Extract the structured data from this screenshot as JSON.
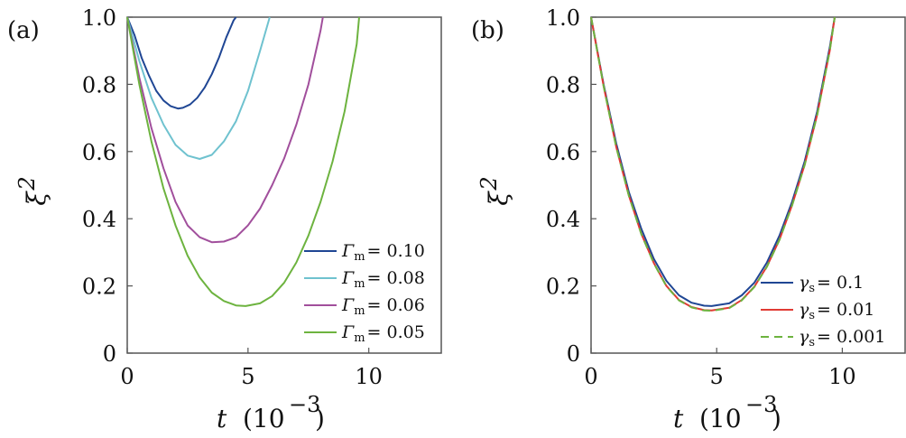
{
  "chart_data": [
    {
      "panel_label": "(a)",
      "type": "line",
      "xlabel": "t",
      "xlabel_unit": "(10",
      "xlabel_exp": "−3",
      "xlabel_close": ")",
      "ylabel": "ξ",
      "ylabel_exp": "2",
      "xlim": [
        0,
        13
      ],
      "ylim": [
        0,
        1.0
      ],
      "xticks": [
        0,
        5,
        10
      ],
      "yticks": [
        0,
        0.2,
        0.4,
        0.6,
        0.8,
        1.0
      ],
      "xtick_labels": [
        "0",
        "5",
        "10"
      ],
      "ytick_labels": [
        "0",
        "0.2",
        "0.4",
        "0.6",
        "0.8",
        "1.0"
      ],
      "legend_position": "bottom-right",
      "series": [
        {
          "name": "Γm = 0.10",
          "legend_sym": "Γ",
          "legend_sub": "m",
          "legend_val": "= 0.10",
          "color": "#1f4694",
          "dash": "none",
          "x": [
            0,
            0.3,
            0.6,
            0.9,
            1.2,
            1.5,
            1.8,
            2.1,
            2.3,
            2.6,
            2.9,
            3.2,
            3.5,
            3.8,
            4.1,
            4.4,
            4.5
          ],
          "y": [
            1.0,
            0.947,
            0.878,
            0.826,
            0.781,
            0.752,
            0.735,
            0.728,
            0.73,
            0.74,
            0.76,
            0.79,
            0.83,
            0.88,
            0.94,
            0.99,
            1.0
          ]
        },
        {
          "name": "Γm = 0.08",
          "legend_sym": "Γ",
          "legend_sub": "m",
          "legend_val": "= 0.08",
          "color": "#6fc2cf",
          "dash": "none",
          "x": [
            0,
            0.5,
            1.0,
            1.5,
            2.0,
            2.5,
            3.0,
            3.5,
            4.0,
            4.5,
            5.0,
            5.5,
            5.9
          ],
          "y": [
            1.0,
            0.87,
            0.76,
            0.68,
            0.62,
            0.588,
            0.578,
            0.59,
            0.63,
            0.69,
            0.78,
            0.9,
            1.0
          ]
        },
        {
          "name": "Γm = 0.06",
          "legend_sym": "Γ",
          "legend_sub": "m",
          "legend_val": "= 0.06",
          "color": "#a14f9c",
          "dash": "none",
          "x": [
            0,
            0.5,
            1.0,
            1.5,
            2.0,
            2.5,
            3.0,
            3.5,
            4.0,
            4.5,
            5.0,
            5.5,
            6.0,
            6.5,
            7.0,
            7.5,
            8.0,
            8.1
          ],
          "y": [
            1.0,
            0.82,
            0.67,
            0.55,
            0.45,
            0.38,
            0.345,
            0.33,
            0.332,
            0.345,
            0.38,
            0.43,
            0.5,
            0.58,
            0.68,
            0.8,
            0.96,
            1.0
          ]
        },
        {
          "name": "Γm = 0.05",
          "legend_sym": "Γ",
          "legend_sub": "m",
          "legend_val": "= 0.05",
          "color": "#6db33f",
          "dash": "none",
          "x": [
            0,
            0.5,
            1.0,
            1.5,
            2.0,
            2.5,
            3.0,
            3.5,
            4.0,
            4.5,
            4.9,
            5.5,
            6.0,
            6.5,
            7.0,
            7.5,
            8.0,
            8.5,
            9.0,
            9.5,
            9.6
          ],
          "y": [
            1.0,
            0.8,
            0.63,
            0.49,
            0.38,
            0.29,
            0.225,
            0.18,
            0.155,
            0.142,
            0.14,
            0.148,
            0.17,
            0.21,
            0.27,
            0.35,
            0.45,
            0.57,
            0.72,
            0.92,
            1.0
          ]
        }
      ]
    },
    {
      "panel_label": "(b)",
      "type": "line",
      "xlabel": "t",
      "xlabel_unit": "(10",
      "xlabel_exp": "−3",
      "xlabel_close": ")",
      "ylabel": "ξ",
      "ylabel_exp": "2",
      "xlim": [
        0,
        12.5
      ],
      "ylim": [
        0,
        1.0
      ],
      "xticks": [
        0,
        5,
        10
      ],
      "yticks": [
        0,
        0.2,
        0.4,
        0.6,
        0.8,
        1.0
      ],
      "xtick_labels": [
        "0",
        "5",
        "10"
      ],
      "ytick_labels": [
        "0",
        "0.2",
        "0.4",
        "0.6",
        "0.8",
        "1.0"
      ],
      "legend_position": "bottom-right",
      "series": [
        {
          "name": "γs = 0.1",
          "legend_sym": "γ",
          "legend_sub": "s",
          "legend_val": "= 0.1",
          "color": "#1f4694",
          "dash": "none",
          "x": [
            0,
            0.5,
            1.0,
            1.5,
            2.0,
            2.5,
            3.0,
            3.5,
            4.0,
            4.5,
            4.8,
            5.5,
            6.0,
            6.5,
            7.0,
            7.5,
            8.0,
            8.5,
            9.0,
            9.5,
            9.7
          ],
          "y": [
            1.0,
            0.8,
            0.625,
            0.48,
            0.37,
            0.28,
            0.215,
            0.172,
            0.15,
            0.141,
            0.14,
            0.148,
            0.172,
            0.21,
            0.27,
            0.35,
            0.45,
            0.57,
            0.72,
            0.91,
            1.0
          ]
        },
        {
          "name": "γs = 0.01",
          "legend_sym": "γ",
          "legend_sub": "s",
          "legend_val": "= 0.01",
          "color": "#e03b34",
          "dash": "none",
          "x": [
            0,
            0.5,
            1.0,
            1.5,
            2.0,
            2.5,
            3.0,
            3.5,
            4.0,
            4.5,
            4.8,
            5.5,
            6.0,
            6.5,
            7.0,
            7.5,
            8.0,
            8.5,
            9.0,
            9.5,
            9.7
          ],
          "y": [
            1.0,
            0.795,
            0.615,
            0.47,
            0.355,
            0.268,
            0.2,
            0.158,
            0.137,
            0.128,
            0.127,
            0.135,
            0.158,
            0.198,
            0.258,
            0.338,
            0.44,
            0.56,
            0.71,
            0.9,
            1.0
          ]
        },
        {
          "name": "γs = 0.001",
          "legend_sym": "γ",
          "legend_sub": "s",
          "legend_val": "= 0.001",
          "color": "#6db33f",
          "dash": "9 6",
          "x": [
            0,
            0.5,
            1.0,
            1.5,
            2.0,
            2.5,
            3.0,
            3.5,
            4.0,
            4.5,
            4.8,
            5.5,
            6.0,
            6.5,
            7.0,
            7.5,
            8.0,
            8.5,
            9.0,
            9.5,
            9.7
          ],
          "y": [
            1.0,
            0.795,
            0.614,
            0.469,
            0.354,
            0.267,
            0.199,
            0.157,
            0.136,
            0.127,
            0.126,
            0.134,
            0.157,
            0.197,
            0.257,
            0.337,
            0.439,
            0.559,
            0.709,
            0.9,
            1.0
          ]
        }
      ]
    }
  ]
}
